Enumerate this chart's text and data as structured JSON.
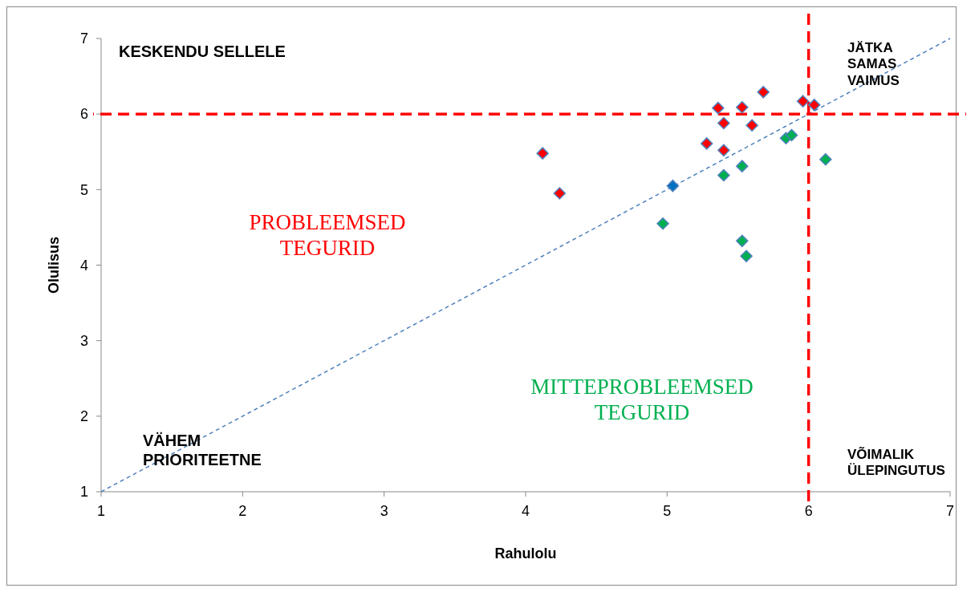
{
  "chart_data": {
    "type": "scatter",
    "xlabel": "Rahulolu",
    "ylabel": "Olulisus",
    "xlim": [
      1,
      7
    ],
    "ylim": [
      1,
      7
    ],
    "xticks": [
      1,
      2,
      3,
      4,
      5,
      6,
      7
    ],
    "yticks": [
      1,
      2,
      3,
      4,
      5,
      6,
      7
    ],
    "grid": false,
    "marker": "diamond",
    "series": [
      {
        "color": "#ff0000",
        "x": [
          4.12,
          4.24,
          5.36,
          5.53,
          5.68,
          5.4,
          5.6,
          5.28,
          5.4,
          5.96,
          6.04
        ],
        "values": [
          5.48,
          4.95,
          6.08,
          6.09,
          6.29,
          5.88,
          5.85,
          5.61,
          5.52,
          6.17,
          6.12
        ]
      },
      {
        "color": "#00b050",
        "x": [
          6.12,
          5.84,
          5.88,
          5.4,
          5.53,
          4.97,
          5.53,
          5.56
        ],
        "values": [
          5.4,
          5.68,
          5.72,
          5.19,
          5.31,
          4.55,
          4.32,
          4.12
        ]
      },
      {
        "color": "#0070c0",
        "x": [
          5.04
        ],
        "values": [
          5.05
        ]
      },
      {
        "type": "line",
        "color": "#4f81bd",
        "line_style": "dashed",
        "marker": "none",
        "x": [
          1,
          7
        ],
        "values": [
          1,
          7
        ]
      }
    ],
    "ref_lines": [
      {
        "axis": "x",
        "value": 6,
        "color": "#ff0000",
        "line_style": "dashed"
      },
      {
        "axis": "y",
        "value": 6,
        "color": "#ff0000",
        "line_style": "dashed"
      }
    ],
    "annotations": [
      "KESKENDU SELLELE",
      "JÄTKA\nSAMAS\nVAIMUS",
      "PROBLEEMSED\nTEGURID",
      "MITTEPROBLEEMSED\nTEGURID",
      "VÄHEM\nPRIORITEETNE",
      "VÕIMALIK\nÜLEPINGUTUS"
    ]
  }
}
